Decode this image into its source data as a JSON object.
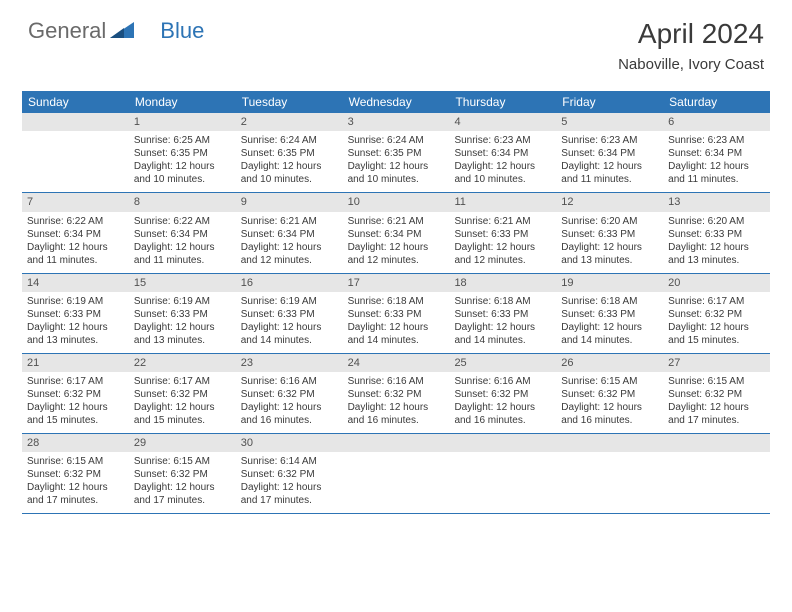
{
  "brand": {
    "part1": "General",
    "part2": "Blue"
  },
  "title": "April 2024",
  "location": "Naboville, Ivory Coast",
  "colors": {
    "header_bg": "#2d74b5",
    "header_text": "#ffffff",
    "daynum_bg": "#e6e6e6",
    "text": "#3a3a3a",
    "rule": "#2d74b5"
  },
  "weekdays": [
    "Sunday",
    "Monday",
    "Tuesday",
    "Wednesday",
    "Thursday",
    "Friday",
    "Saturday"
  ],
  "weeks": [
    [
      {
        "num": "",
        "empty": true
      },
      {
        "num": "1",
        "sunrise": "Sunrise: 6:25 AM",
        "sunset": "Sunset: 6:35 PM",
        "daylight": "Daylight: 12 hours and 10 minutes."
      },
      {
        "num": "2",
        "sunrise": "Sunrise: 6:24 AM",
        "sunset": "Sunset: 6:35 PM",
        "daylight": "Daylight: 12 hours and 10 minutes."
      },
      {
        "num": "3",
        "sunrise": "Sunrise: 6:24 AM",
        "sunset": "Sunset: 6:35 PM",
        "daylight": "Daylight: 12 hours and 10 minutes."
      },
      {
        "num": "4",
        "sunrise": "Sunrise: 6:23 AM",
        "sunset": "Sunset: 6:34 PM",
        "daylight": "Daylight: 12 hours and 10 minutes."
      },
      {
        "num": "5",
        "sunrise": "Sunrise: 6:23 AM",
        "sunset": "Sunset: 6:34 PM",
        "daylight": "Daylight: 12 hours and 11 minutes."
      },
      {
        "num": "6",
        "sunrise": "Sunrise: 6:23 AM",
        "sunset": "Sunset: 6:34 PM",
        "daylight": "Daylight: 12 hours and 11 minutes."
      }
    ],
    [
      {
        "num": "7",
        "sunrise": "Sunrise: 6:22 AM",
        "sunset": "Sunset: 6:34 PM",
        "daylight": "Daylight: 12 hours and 11 minutes."
      },
      {
        "num": "8",
        "sunrise": "Sunrise: 6:22 AM",
        "sunset": "Sunset: 6:34 PM",
        "daylight": "Daylight: 12 hours and 11 minutes."
      },
      {
        "num": "9",
        "sunrise": "Sunrise: 6:21 AM",
        "sunset": "Sunset: 6:34 PM",
        "daylight": "Daylight: 12 hours and 12 minutes."
      },
      {
        "num": "10",
        "sunrise": "Sunrise: 6:21 AM",
        "sunset": "Sunset: 6:34 PM",
        "daylight": "Daylight: 12 hours and 12 minutes."
      },
      {
        "num": "11",
        "sunrise": "Sunrise: 6:21 AM",
        "sunset": "Sunset: 6:33 PM",
        "daylight": "Daylight: 12 hours and 12 minutes."
      },
      {
        "num": "12",
        "sunrise": "Sunrise: 6:20 AM",
        "sunset": "Sunset: 6:33 PM",
        "daylight": "Daylight: 12 hours and 13 minutes."
      },
      {
        "num": "13",
        "sunrise": "Sunrise: 6:20 AM",
        "sunset": "Sunset: 6:33 PM",
        "daylight": "Daylight: 12 hours and 13 minutes."
      }
    ],
    [
      {
        "num": "14",
        "sunrise": "Sunrise: 6:19 AM",
        "sunset": "Sunset: 6:33 PM",
        "daylight": "Daylight: 12 hours and 13 minutes."
      },
      {
        "num": "15",
        "sunrise": "Sunrise: 6:19 AM",
        "sunset": "Sunset: 6:33 PM",
        "daylight": "Daylight: 12 hours and 13 minutes."
      },
      {
        "num": "16",
        "sunrise": "Sunrise: 6:19 AM",
        "sunset": "Sunset: 6:33 PM",
        "daylight": "Daylight: 12 hours and 14 minutes."
      },
      {
        "num": "17",
        "sunrise": "Sunrise: 6:18 AM",
        "sunset": "Sunset: 6:33 PM",
        "daylight": "Daylight: 12 hours and 14 minutes."
      },
      {
        "num": "18",
        "sunrise": "Sunrise: 6:18 AM",
        "sunset": "Sunset: 6:33 PM",
        "daylight": "Daylight: 12 hours and 14 minutes."
      },
      {
        "num": "19",
        "sunrise": "Sunrise: 6:18 AM",
        "sunset": "Sunset: 6:33 PM",
        "daylight": "Daylight: 12 hours and 14 minutes."
      },
      {
        "num": "20",
        "sunrise": "Sunrise: 6:17 AM",
        "sunset": "Sunset: 6:32 PM",
        "daylight": "Daylight: 12 hours and 15 minutes."
      }
    ],
    [
      {
        "num": "21",
        "sunrise": "Sunrise: 6:17 AM",
        "sunset": "Sunset: 6:32 PM",
        "daylight": "Daylight: 12 hours and 15 minutes."
      },
      {
        "num": "22",
        "sunrise": "Sunrise: 6:17 AM",
        "sunset": "Sunset: 6:32 PM",
        "daylight": "Daylight: 12 hours and 15 minutes."
      },
      {
        "num": "23",
        "sunrise": "Sunrise: 6:16 AM",
        "sunset": "Sunset: 6:32 PM",
        "daylight": "Daylight: 12 hours and 16 minutes."
      },
      {
        "num": "24",
        "sunrise": "Sunrise: 6:16 AM",
        "sunset": "Sunset: 6:32 PM",
        "daylight": "Daylight: 12 hours and 16 minutes."
      },
      {
        "num": "25",
        "sunrise": "Sunrise: 6:16 AM",
        "sunset": "Sunset: 6:32 PM",
        "daylight": "Daylight: 12 hours and 16 minutes."
      },
      {
        "num": "26",
        "sunrise": "Sunrise: 6:15 AM",
        "sunset": "Sunset: 6:32 PM",
        "daylight": "Daylight: 12 hours and 16 minutes."
      },
      {
        "num": "27",
        "sunrise": "Sunrise: 6:15 AM",
        "sunset": "Sunset: 6:32 PM",
        "daylight": "Daylight: 12 hours and 17 minutes."
      }
    ],
    [
      {
        "num": "28",
        "sunrise": "Sunrise: 6:15 AM",
        "sunset": "Sunset: 6:32 PM",
        "daylight": "Daylight: 12 hours and 17 minutes."
      },
      {
        "num": "29",
        "sunrise": "Sunrise: 6:15 AM",
        "sunset": "Sunset: 6:32 PM",
        "daylight": "Daylight: 12 hours and 17 minutes."
      },
      {
        "num": "30",
        "sunrise": "Sunrise: 6:14 AM",
        "sunset": "Sunset: 6:32 PM",
        "daylight": "Daylight: 12 hours and 17 minutes."
      },
      {
        "num": "",
        "empty": true
      },
      {
        "num": "",
        "empty": true
      },
      {
        "num": "",
        "empty": true
      },
      {
        "num": "",
        "empty": true
      }
    ]
  ]
}
